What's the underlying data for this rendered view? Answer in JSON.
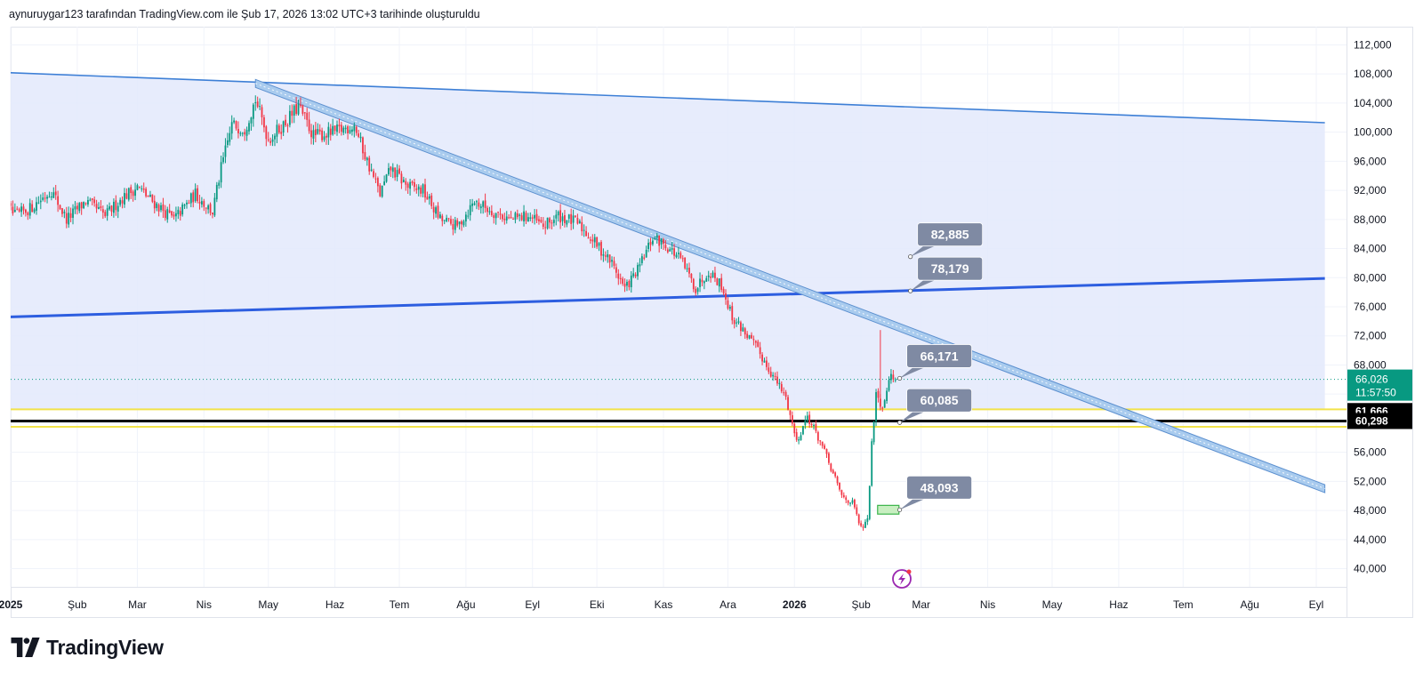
{
  "header": {
    "attribution": "aynuruygar123 tarafından TradingView.com ile Şub 17, 2026 13:02 UTC+3 tarihinde oluşturuldu"
  },
  "brand": {
    "name": "TradingView"
  },
  "colors": {
    "up": "#089981",
    "down": "#f23645",
    "channel_fill": "#e3e9fb",
    "channel_line": "#3d7fd6",
    "support_blue": "#2d5ee0",
    "downtrend_fill": "#a9cbee",
    "downtrend_line": "#5b8fcf",
    "yellow": "#f2e34a",
    "black": "#000000",
    "callout": "#7f8aa3",
    "price_tag": "#089981",
    "spark": "#9b27b0"
  },
  "chart_data": {
    "type": "candlestick",
    "ylim": [
      37500,
      114500
    ],
    "y_ticks": [
      "112,000",
      "108,000",
      "104,000",
      "100,000",
      "96,000",
      "92,000",
      "88,000",
      "84,000",
      "80,000",
      "76,000",
      "72,000",
      "68,000",
      "64,000",
      "60,000",
      "56,000",
      "52,000",
      "48,000",
      "44,000",
      "40,000"
    ],
    "y_tick_values": [
      112000,
      108000,
      104000,
      100000,
      96000,
      92000,
      88000,
      84000,
      80000,
      76000,
      72000,
      68000,
      64000,
      60000,
      56000,
      52000,
      48000,
      44000,
      40000
    ],
    "x_ticks": [
      {
        "label": "2025",
        "date": "2025-01-01",
        "bold": true
      },
      {
        "label": "Şub",
        "date": "2025-02-01"
      },
      {
        "label": "Mar",
        "date": "2025-03-01"
      },
      {
        "label": "Nis",
        "date": "2025-04-01"
      },
      {
        "label": "May",
        "date": "2025-05-01"
      },
      {
        "label": "Haz",
        "date": "2025-06-01"
      },
      {
        "label": "Tem",
        "date": "2025-07-01"
      },
      {
        "label": "Ağu",
        "date": "2025-08-01"
      },
      {
        "label": "Eyl",
        "date": "2025-09-01"
      },
      {
        "label": "Eki",
        "date": "2025-10-01"
      },
      {
        "label": "Kas",
        "date": "2025-11-01"
      },
      {
        "label": "Ara",
        "date": "2025-12-01"
      },
      {
        "label": "2026",
        "date": "2026-01-01",
        "bold": true
      },
      {
        "label": "Şub",
        "date": "2026-02-01"
      },
      {
        "label": "Mar",
        "date": "2026-03-01"
      },
      {
        "label": "Nis",
        "date": "2026-04-01"
      },
      {
        "label": "May",
        "date": "2026-05-01"
      },
      {
        "label": "Haz",
        "date": "2026-06-01"
      },
      {
        "label": "Tem",
        "date": "2026-07-01"
      },
      {
        "label": "Ağu",
        "date": "2026-08-01"
      },
      {
        "label": "Eyl",
        "date": "2026-09-01"
      }
    ],
    "price_path": [
      [
        "2024-12-26",
        91000
      ],
      [
        "2025-01-03",
        88500
      ],
      [
        "2025-01-10",
        89500
      ],
      [
        "2025-01-20",
        92000
      ],
      [
        "2025-01-27",
        88000
      ],
      [
        "2025-02-05",
        90500
      ],
      [
        "2025-02-14",
        88500
      ],
      [
        "2025-02-22",
        91000
      ],
      [
        "2025-03-01",
        92500
      ],
      [
        "2025-03-08",
        90500
      ],
      [
        "2025-03-18",
        88000
      ],
      [
        "2025-03-28",
        91500
      ],
      [
        "2025-04-05",
        89000
      ],
      [
        "2025-04-09",
        95000
      ],
      [
        "2025-04-14",
        101000
      ],
      [
        "2025-04-20",
        100500
      ],
      [
        "2025-04-25",
        104500
      ],
      [
        "2025-05-01",
        99000
      ],
      [
        "2025-05-08",
        101000
      ],
      [
        "2025-05-15",
        103500
      ],
      [
        "2025-05-22",
        99500
      ],
      [
        "2025-06-01",
        100000
      ],
      [
        "2025-06-10",
        101000
      ],
      [
        "2025-06-16",
        96000
      ],
      [
        "2025-06-22",
        91500
      ],
      [
        "2025-06-27",
        95000
      ],
      [
        "2025-07-05",
        92500
      ],
      [
        "2025-07-12",
        92000
      ],
      [
        "2025-07-20",
        88000
      ],
      [
        "2025-07-28",
        87000
      ],
      [
        "2025-08-05",
        90500
      ],
      [
        "2025-08-14",
        89000
      ],
      [
        "2025-08-22",
        88000
      ],
      [
        "2025-08-30",
        88500
      ],
      [
        "2025-09-06",
        87000
      ],
      [
        "2025-09-13",
        88500
      ],
      [
        "2025-09-22",
        87500
      ],
      [
        "2025-10-01",
        84500
      ],
      [
        "2025-10-08",
        82000
      ],
      [
        "2025-10-14",
        78500
      ],
      [
        "2025-10-20",
        81000
      ],
      [
        "2025-10-27",
        85500
      ],
      [
        "2025-11-02",
        84500
      ],
      [
        "2025-11-09",
        82500
      ],
      [
        "2025-11-16",
        78500
      ],
      [
        "2025-11-22",
        81000
      ],
      [
        "2025-11-28",
        79000
      ],
      [
        "2025-12-03",
        74500
      ],
      [
        "2025-12-09",
        72500
      ],
      [
        "2025-12-15",
        70000
      ],
      [
        "2025-12-22",
        66500
      ],
      [
        "2025-12-28",
        63500
      ],
      [
        "2026-01-02",
        57500
      ],
      [
        "2026-01-07",
        61000
      ],
      [
        "2026-01-13",
        57500
      ],
      [
        "2026-01-19",
        53000
      ],
      [
        "2026-01-23",
        50000
      ],
      [
        "2026-01-28",
        49000
      ],
      [
        "2026-02-01",
        45500
      ],
      [
        "2026-02-04",
        46500
      ],
      [
        "2026-02-06",
        57000
      ],
      [
        "2026-02-08",
        64500
      ],
      [
        "2026-02-11",
        62000
      ],
      [
        "2026-02-14",
        66500
      ],
      [
        "2026-02-17",
        66026
      ]
    ],
    "drawings": {
      "channel_top": {
        "from": [
          "2024-12-20",
          108300
        ],
        "to": [
          "2026-09-05",
          101300
        ]
      },
      "channel_bottom": {
        "from": [
          "2024-12-20",
          74500
        ],
        "to": [
          "2026-09-05",
          79900
        ]
      },
      "downtrend": {
        "from": [
          "2025-04-25",
          106700
        ],
        "to": [
          "2026-09-05",
          51000
        ]
      },
      "yellow_high": 61900,
      "yellow_low": 59500,
      "black_level": 60300,
      "highlight_box": {
        "date": "2026-02-17",
        "from": 47500,
        "to": 48700
      }
    },
    "callouts": [
      {
        "label": "82,885",
        "date": "2026-02-24",
        "value": 82885
      },
      {
        "label": "78,179",
        "date": "2026-02-24",
        "value": 78179
      },
      {
        "label": "66,171",
        "date": "2026-02-19",
        "value": 66171
      },
      {
        "label": "60,085",
        "date": "2026-02-19",
        "value": 60085
      },
      {
        "label": "48,093",
        "date": "2026-02-19",
        "value": 48093
      }
    ],
    "last_price": {
      "value": 66026,
      "label": "66,026",
      "countdown": "11:57:50"
    },
    "level_tags": [
      {
        "label": "61,666",
        "value": 61666
      },
      {
        "label": "60,298",
        "value": 60298
      }
    ]
  }
}
